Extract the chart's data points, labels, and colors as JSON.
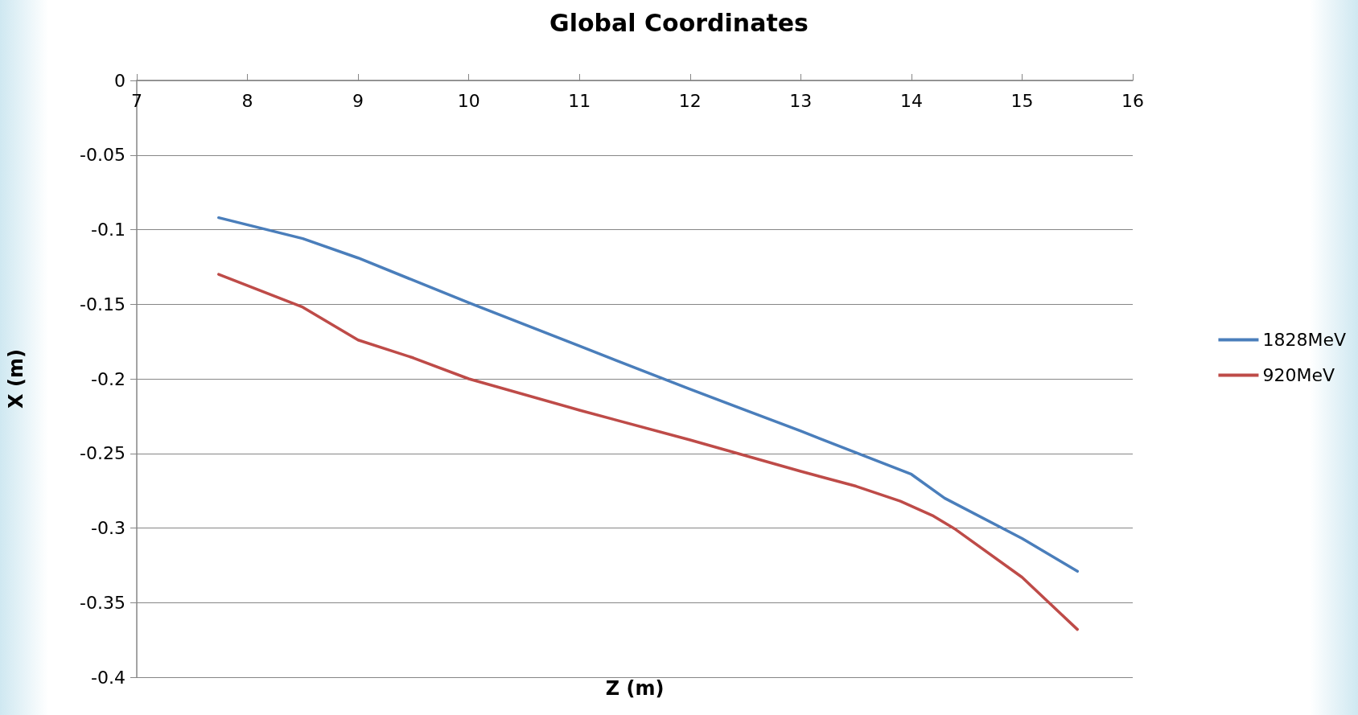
{
  "chart_data": {
    "type": "line",
    "title": "Global Coordinates",
    "xlabel": "Z (m)",
    "ylabel": "X (m)",
    "xlim": [
      7,
      16
    ],
    "xticks": [
      7,
      8,
      9,
      10,
      11,
      12,
      13,
      14,
      15,
      16
    ],
    "ylim": [
      -0.4,
      0
    ],
    "yticks": [
      -0.4,
      -0.35,
      -0.3,
      -0.25,
      -0.2,
      -0.15,
      -0.1,
      -0.05,
      0
    ],
    "grid": "y",
    "legend": "right",
    "marker": "none",
    "line_style": "solid",
    "series": [
      {
        "name": "1828MeV",
        "color": "#4a7ebb",
        "x": [
          7.74,
          8.5,
          9,
          10,
          11,
          12,
          13,
          14,
          14.3,
          15,
          15.5
        ],
        "values": [
          -0.092,
          -0.106,
          -0.119,
          -0.149,
          -0.178,
          -0.207,
          -0.235,
          -0.264,
          -0.28,
          -0.307,
          -0.329
        ]
      },
      {
        "name": "920MeV",
        "color": "#be4b48",
        "x": [
          7.74,
          8.5,
          9,
          9.5,
          10,
          11,
          12,
          13,
          13.5,
          13.9,
          14.2,
          14.4,
          15,
          15.5
        ],
        "values": [
          -0.13,
          -0.152,
          -0.174,
          -0.186,
          -0.2,
          -0.221,
          -0.241,
          -0.262,
          -0.272,
          -0.282,
          -0.292,
          -0.301,
          -0.333,
          -0.368
        ]
      }
    ]
  }
}
